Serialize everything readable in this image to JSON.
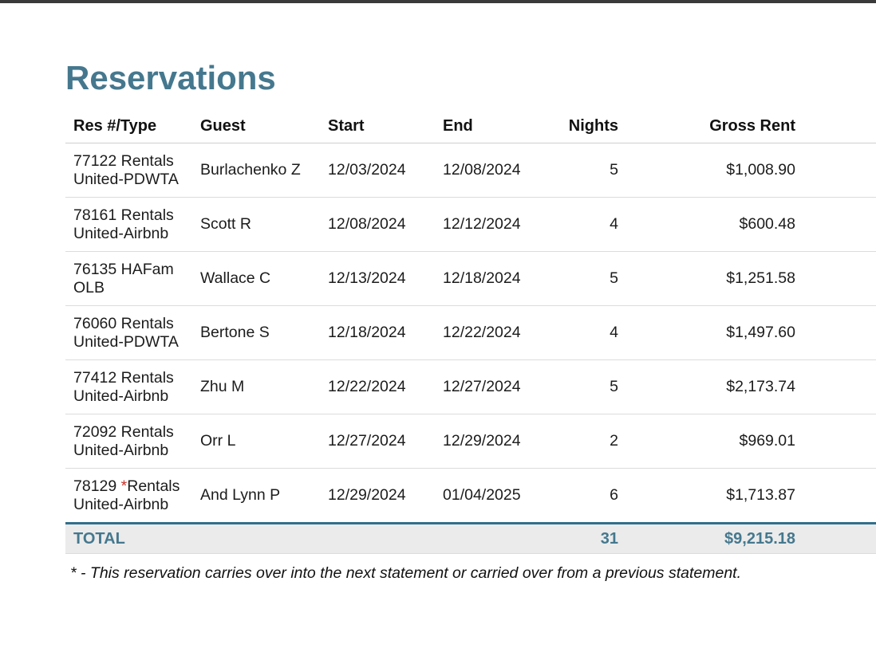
{
  "page": {
    "title": "Reservations",
    "footnote": "* - This reservation carries over into the next statement or carried over from a previous statement."
  },
  "colors": {
    "accent": "#45788e",
    "accent_border": "#31708c",
    "flag_red": "#c9342c",
    "topbar": "#3a3a3a"
  },
  "table": {
    "columns": [
      "Res #/Type",
      "Guest",
      "Start",
      "End",
      "Nights",
      "Gross Rent"
    ],
    "rows": [
      {
        "res_id": "77122",
        "flag": "",
        "res_type": "Rentals United-PDWTA",
        "guest": "Burlachenko Z",
        "start": "12/03/2024",
        "end": "12/08/2024",
        "nights": "5",
        "gross_rent": "$1,008.90"
      },
      {
        "res_id": "78161",
        "flag": "",
        "res_type": "Rentals United-Airbnb",
        "guest": "Scott R",
        "start": "12/08/2024",
        "end": "12/12/2024",
        "nights": "4",
        "gross_rent": "$600.48"
      },
      {
        "res_id": "76135",
        "flag": "",
        "res_type": "HAFam OLB",
        "guest": "Wallace C",
        "start": "12/13/2024",
        "end": "12/18/2024",
        "nights": "5",
        "gross_rent": "$1,251.58"
      },
      {
        "res_id": "76060",
        "flag": "",
        "res_type": "Rentals United-PDWTA",
        "guest": "Bertone S",
        "start": "12/18/2024",
        "end": "12/22/2024",
        "nights": "4",
        "gross_rent": "$1,497.60"
      },
      {
        "res_id": "77412",
        "flag": "",
        "res_type": "Rentals United-Airbnb",
        "guest": "Zhu M",
        "start": "12/22/2024",
        "end": "12/27/2024",
        "nights": "5",
        "gross_rent": "$2,173.74"
      },
      {
        "res_id": "72092",
        "flag": "",
        "res_type": "Rentals United-Airbnb",
        "guest": "Orr L",
        "start": "12/27/2024",
        "end": "12/29/2024",
        "nights": "2",
        "gross_rent": "$969.01"
      },
      {
        "res_id": "78129",
        "flag": "*",
        "res_type": "Rentals United-Airbnb",
        "guest": "And Lynn P",
        "start": "12/29/2024",
        "end": "01/04/2025",
        "nights": "6",
        "gross_rent": "$1,713.87"
      }
    ],
    "total": {
      "label": "TOTAL",
      "nights": "31",
      "gross_rent": "$9,215.18"
    }
  }
}
